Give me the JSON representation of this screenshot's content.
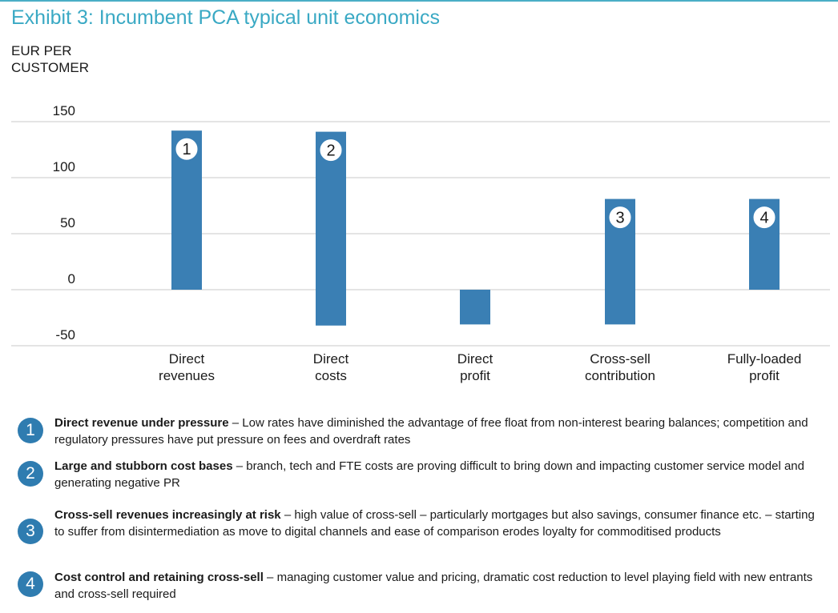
{
  "header": {
    "title": "Exhibit 3: Incumbent PCA typical unit economics",
    "unit_line1": "EUR PER",
    "unit_line2": "CUSTOMER"
  },
  "chart_data": {
    "type": "bar",
    "categories": [
      [
        "Direct",
        "revenues"
      ],
      [
        "Direct",
        "costs"
      ],
      [
        "Direct",
        "profit"
      ],
      [
        "Cross-sell",
        "contribution"
      ],
      [
        "Fully-loaded",
        "profit"
      ]
    ],
    "bars": [
      {
        "from": 0,
        "to": 142,
        "marker": "1"
      },
      {
        "from": 141,
        "to": -32,
        "marker": "2"
      },
      {
        "from": 0,
        "to": -31,
        "marker": ""
      },
      {
        "from": 81,
        "to": -31,
        "marker": "3"
      },
      {
        "from": 0,
        "to": 81,
        "marker": "4"
      }
    ],
    "yticks": [
      "150",
      "100",
      "50",
      "0",
      "-50"
    ],
    "ytick_values": [
      150,
      100,
      50,
      0,
      -50
    ],
    "ylim": [
      -50,
      150
    ],
    "grid": true,
    "bar_color": "#3a7fb4"
  },
  "legend": [
    {
      "num": "1",
      "bold": "Direct revenue under pressure",
      "text": " – Low rates have diminished the advantage of free float from non-interest bearing balances; competition and regulatory pressures have put pressure on fees and overdraft rates"
    },
    {
      "num": "2",
      "bold": "Large and stubborn cost bases",
      "text": " – branch, tech and FTE costs are proving difficult to bring down and impacting customer service model and generating negative PR"
    },
    {
      "num": "3",
      "bold": "Cross-sell revenues increasingly at risk",
      "text": " – high value of cross-sell – particularly mortgages but also savings, consumer finance etc. –  starting to suffer from disintermediation as move to digital channels and ease of comparison erodes loyalty for commoditised products"
    },
    {
      "num": "4",
      "bold": "Cost control and retaining cross-sell",
      "text": " – managing customer value and pricing, dramatic cost reduction to level playing field with new entrants and cross-sell required"
    }
  ]
}
